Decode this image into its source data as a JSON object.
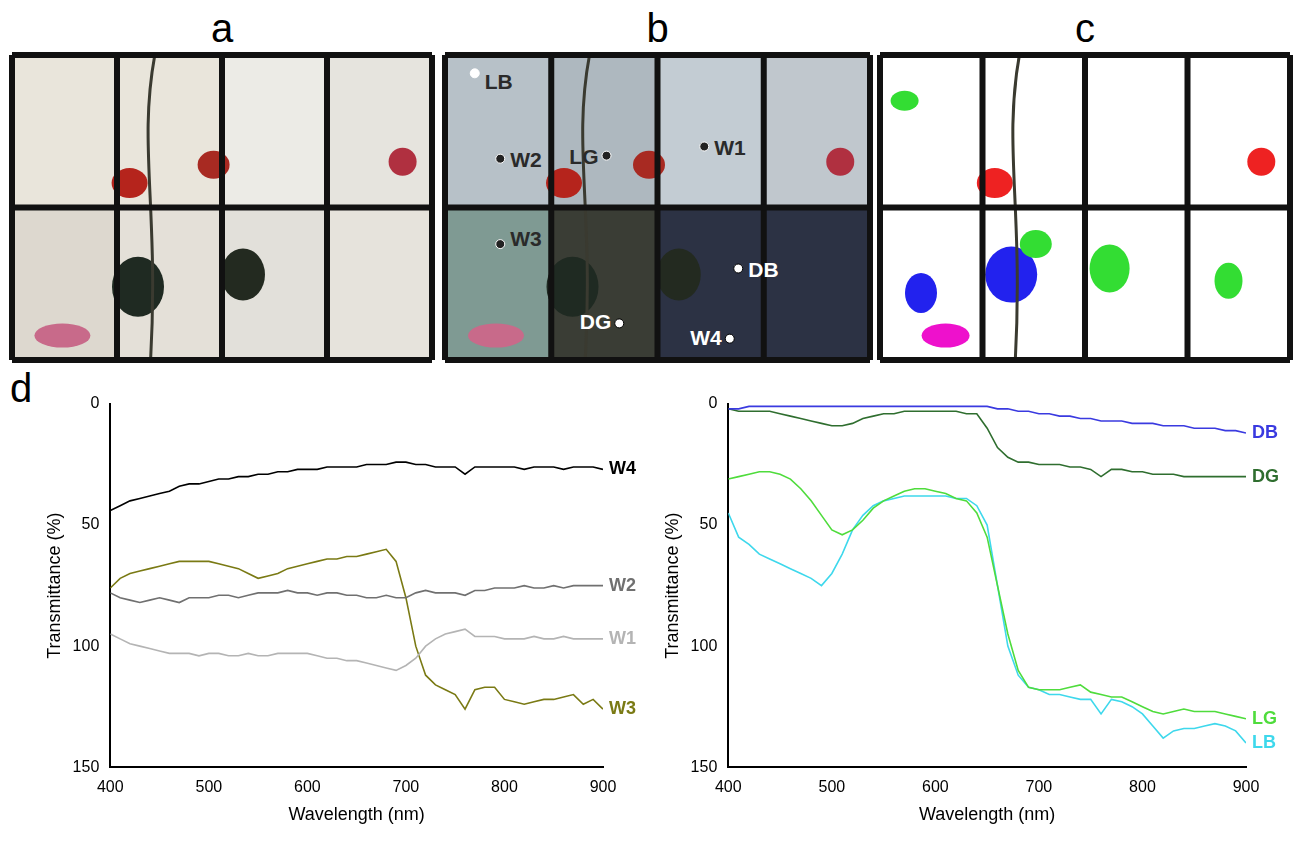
{
  "figure": {
    "panels": [
      {
        "letter": "a"
      },
      {
        "letter": "b",
        "points": [
          "LB",
          "W2",
          "LG",
          "W1",
          "W3",
          "DG",
          "DB",
          "W4"
        ]
      },
      {
        "letter": "c"
      },
      {
        "letter": "d"
      }
    ]
  },
  "chart_data": [
    {
      "type": "line",
      "x": [
        400,
        410,
        420,
        430,
        440,
        450,
        460,
        470,
        480,
        490,
        500,
        510,
        520,
        530,
        540,
        550,
        560,
        570,
        580,
        590,
        600,
        610,
        620,
        630,
        640,
        650,
        660,
        670,
        680,
        690,
        700,
        710,
        720,
        730,
        740,
        750,
        760,
        770,
        780,
        790,
        800,
        810,
        820,
        830,
        840,
        850,
        860,
        870,
        880,
        890,
        900
      ],
      "x_label": "Wavelength (nm)",
      "y_label": "Transmittance (%)",
      "xlim": [
        400,
        900
      ],
      "xticks": [
        400,
        500,
        600,
        700,
        800,
        900
      ],
      "ylim": [
        150,
        0
      ],
      "yticks": [
        0,
        50,
        100,
        150
      ],
      "grid": false,
      "series": [
        {
          "name": "W4",
          "color": "#000000",
          "values": [
            44,
            42,
            40,
            39,
            38,
            37,
            36,
            34,
            33,
            33,
            32,
            31,
            31,
            30,
            30,
            29,
            29,
            28,
            28,
            27,
            27,
            27,
            26,
            26,
            26,
            26,
            25,
            25,
            25,
            24,
            24,
            25,
            25,
            26,
            26,
            26,
            29,
            26,
            26,
            26,
            26,
            26,
            27,
            26,
            26,
            26,
            27,
            26,
            26,
            26,
            27
          ]
        },
        {
          "name": "W2",
          "color": "#707070",
          "values": [
            78,
            80,
            81,
            82,
            81,
            80,
            81,
            82,
            80,
            80,
            80,
            79,
            79,
            80,
            79,
            78,
            78,
            78,
            77,
            78,
            78,
            79,
            78,
            78,
            79,
            79,
            80,
            80,
            79,
            80,
            80,
            78,
            77,
            78,
            78,
            78,
            79,
            77,
            77,
            76,
            76,
            76,
            75,
            76,
            76,
            75,
            76,
            75,
            75,
            75,
            75
          ]
        },
        {
          "name": "W1",
          "color": "#b4b4b4",
          "values": [
            95,
            97,
            99,
            100,
            101,
            102,
            103,
            103,
            103,
            104,
            103,
            103,
            104,
            104,
            103,
            104,
            104,
            103,
            103,
            103,
            103,
            104,
            105,
            105,
            106,
            106,
            107,
            108,
            109,
            110,
            108,
            105,
            100,
            97,
            95,
            94,
            93,
            96,
            96,
            96,
            97,
            97,
            97,
            96,
            97,
            97,
            96,
            97,
            97,
            97,
            97
          ]
        },
        {
          "name": "W3",
          "color": "#7a7a14",
          "values": [
            76,
            72,
            70,
            69,
            68,
            67,
            66,
            65,
            65,
            65,
            65,
            66,
            67,
            68,
            70,
            72,
            71,
            70,
            68,
            67,
            66,
            65,
            64,
            64,
            63,
            63,
            62,
            61,
            60,
            65,
            80,
            100,
            112,
            116,
            118,
            120,
            126,
            118,
            117,
            117,
            122,
            123,
            124,
            123,
            122,
            122,
            121,
            120,
            124,
            122,
            126
          ]
        }
      ]
    },
    {
      "type": "line",
      "x": [
        400,
        410,
        420,
        430,
        440,
        450,
        460,
        470,
        480,
        490,
        500,
        510,
        520,
        530,
        540,
        550,
        560,
        570,
        580,
        590,
        600,
        610,
        620,
        630,
        640,
        650,
        660,
        670,
        680,
        690,
        700,
        710,
        720,
        730,
        740,
        750,
        760,
        770,
        780,
        790,
        800,
        810,
        820,
        830,
        840,
        850,
        860,
        870,
        880,
        890,
        900
      ],
      "x_label": "Wavelength (nm)",
      "y_label": "Transmittance (%)",
      "xlim": [
        400,
        900
      ],
      "xticks": [
        400,
        500,
        600,
        700,
        800,
        900
      ],
      "ylim": [
        150,
        0
      ],
      "yticks": [
        0,
        50,
        100,
        150
      ],
      "grid": false,
      "series": [
        {
          "name": "DB",
          "color": "#3a3ae0",
          "values": [
            2,
            2,
            1,
            1,
            1,
            1,
            1,
            1,
            1,
            1,
            1,
            1,
            1,
            1,
            1,
            1,
            1,
            1,
            1,
            1,
            1,
            1,
            1,
            1,
            1,
            1,
            2,
            2,
            3,
            3,
            4,
            4,
            5,
            5,
            6,
            6,
            7,
            7,
            7,
            8,
            8,
            8,
            9,
            9,
            9,
            10,
            10,
            10,
            11,
            11,
            12
          ]
        },
        {
          "name": "DG",
          "color": "#2f6e2f",
          "values": [
            2,
            3,
            3,
            3,
            3,
            4,
            5,
            6,
            7,
            8,
            9,
            9,
            8,
            6,
            5,
            4,
            4,
            3,
            3,
            3,
            3,
            3,
            3,
            4,
            4,
            10,
            18,
            22,
            24,
            24,
            25,
            25,
            25,
            26,
            26,
            27,
            30,
            27,
            27,
            28,
            28,
            29,
            29,
            29,
            30,
            30,
            30,
            30,
            30,
            30,
            30
          ]
        },
        {
          "name": "LG",
          "color": "#4fdc3c",
          "values": [
            31,
            30,
            29,
            28,
            28,
            29,
            31,
            35,
            40,
            46,
            52,
            54,
            52,
            48,
            43,
            40,
            38,
            36,
            35,
            35,
            36,
            37,
            39,
            40,
            45,
            55,
            75,
            95,
            110,
            117,
            118,
            118,
            118,
            117,
            116,
            119,
            120,
            121,
            121,
            123,
            125,
            127,
            128,
            127,
            126,
            127,
            127,
            127,
            128,
            129,
            130
          ]
        },
        {
          "name": "LB",
          "color": "#3ed8ec",
          "values": [
            45,
            55,
            58,
            62,
            64,
            66,
            68,
            70,
            72,
            75,
            70,
            62,
            52,
            46,
            42,
            40,
            39,
            38,
            38,
            38,
            38,
            38,
            39,
            39,
            42,
            50,
            75,
            100,
            112,
            117,
            118,
            120,
            120,
            121,
            122,
            122,
            128,
            122,
            123,
            125,
            128,
            133,
            138,
            135,
            134,
            134,
            133,
            132,
            133,
            135,
            140
          ]
        }
      ]
    }
  ]
}
